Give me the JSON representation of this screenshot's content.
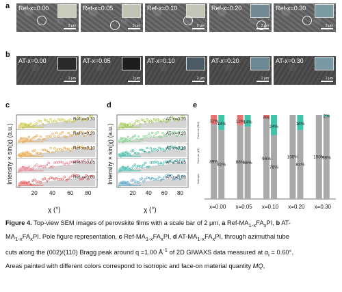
{
  "panels": {
    "a": "a",
    "b": "b",
    "c": "c",
    "d": "d",
    "e": "e"
  },
  "row_a": [
    {
      "label": "Ref-x=0.00",
      "scale": "2 μm",
      "inset_color": "#c9cbbb"
    },
    {
      "label": "Ref-x=0.05",
      "scale": "2 μm",
      "inset_color": "#c1c3b3"
    },
    {
      "label": "Ref-x=0.10",
      "scale": "2 μm",
      "inset_color": "#c4c6b8"
    },
    {
      "label": "Ref-x=0.20",
      "scale": "2 μm",
      "inset_color": "#6f8a92"
    },
    {
      "label": "Ref-x=0.30",
      "scale": "2 μm",
      "inset_color": "#7b9aa2"
    }
  ],
  "row_b": [
    {
      "label": "AT-x=0.00",
      "scale": "2 μm",
      "inset_color": "#2b2b2b"
    },
    {
      "label": "AT-x=0.05",
      "scale": "2 μm",
      "inset_color": "#1d1d1d"
    },
    {
      "label": "AT-x=0.10",
      "scale": "2 μm",
      "inset_color": "#4a5b66"
    },
    {
      "label": "AT-x=0.20",
      "scale": "2 μm",
      "inset_color": "#6c8894"
    },
    {
      "label": "AT-x=0.30",
      "scale": "2 μm",
      "inset_color": "#7a98a4"
    }
  ],
  "chart_data": [
    {
      "type": "scatter",
      "panel": "c",
      "ylabel": "Intensity × sin(χ) (a.u.)",
      "xlabel": "χ (°)",
      "xticks": [
        "20",
        "40",
        "60",
        "80"
      ],
      "series": [
        {
          "name": "Ref-x=0.30",
          "color": "#c8c43a"
        },
        {
          "name": "Ref-x=0.20",
          "color": "#e8a54a"
        },
        {
          "name": "Ref-x=0.10",
          "color": "#e9a23c"
        },
        {
          "name": "Ref-x=0.05",
          "color": "#e57d8a"
        },
        {
          "name": "Ref-x=0.00",
          "color": "#e8605f"
        }
      ]
    },
    {
      "type": "scatter",
      "panel": "d",
      "ylabel": "Intensity × sin(χ) (a.u.)",
      "xlabel": "χ (°)",
      "xticks": [
        "20",
        "40",
        "60",
        "80"
      ],
      "series": [
        {
          "name": "AT-x=0.30",
          "color": "#9ac64a"
        },
        {
          "name": "AT-x=0.20",
          "color": "#7fcf8a"
        },
        {
          "name": "AT-x=0.10",
          "color": "#39b9a6"
        },
        {
          "name": "AT-x=0.05",
          "color": "#3ab8b0"
        },
        {
          "name": "AT-x=0.00",
          "color": "#5aa7c8"
        }
      ]
    },
    {
      "type": "bar",
      "panel": "e",
      "categories": [
        "x=0.00",
        "x=0.05",
        "x=0.10",
        "x=0.20",
        "x=0.30"
      ],
      "legend_labels": [
        "Face-on (Ref)",
        "Face-on (AT)",
        "Isotropic"
      ],
      "colors": {
        "isotropic": "#a9a9a9",
        "faceon_ref": "#e8706f",
        "faceon_at": "#3fc3a9"
      },
      "bars": [
        {
          "cat": "x=0.00",
          "ref_iso": 89,
          "ref_face": 11,
          "at_iso": 82,
          "at_face": 18,
          "labels": {
            "ref_iso": "89%",
            "ref_face": "11%",
            "at_iso": "82%",
            "at_face": "18%"
          }
        },
        {
          "cat": "x=0.05",
          "ref_iso": 88,
          "ref_face": 12,
          "at_iso": 86,
          "at_face": 14,
          "labels": {
            "ref_iso": "88%",
            "ref_face": "12%",
            "at_iso": "86%",
            "at_face": "14%"
          }
        },
        {
          "cat": "x=0.10",
          "ref_iso": 96,
          "ref_face": 4,
          "at_iso": 76,
          "at_face": 24,
          "labels": {
            "ref_iso": "96%",
            "ref_face": "4%",
            "at_iso": "76%",
            "at_face": "24%"
          }
        },
        {
          "cat": "x=0.20",
          "ref_iso": 100,
          "ref_face": 0,
          "at_iso": 82,
          "at_face": 18,
          "labels": {
            "ref_iso": "100%",
            "ref_face": "",
            "at_iso": "82%",
            "at_face": "18%"
          }
        },
        {
          "cat": "x=0.30",
          "ref_iso": 100,
          "ref_face": 0,
          "at_iso": 98,
          "at_face": 2,
          "labels": {
            "ref_iso": "100%",
            "ref_face": "",
            "at_iso": "98%",
            "at_face": "2%"
          }
        }
      ]
    }
  ],
  "caption": {
    "lines": [
      "<b>Figure 4.</b> Top-view SEM images of perovskite films with a scale bar of 2 μm, <b>a</b> Ref-MA<sub>1-x</sub>FA<sub>x</sub>PI, <b>b</b> AT-",
      "MA<sub>1-x</sub>FA<sub>x</sub>PI. Pole figure representation, <b>c</b> Ref-MA<sub>1-x</sub>FA<sub>x</sub>PI, <b>d</b> AT-MA<sub>1-x</sub>FA<sub>x</sub>PI, through azimuthal tube",
      "cuts along the (002)/(110) Bragg peak around q =1.00 Å<sup>-1</sup> of 2D GIWAXS data measured at α<sub>i</sub> = 0.60°.",
      "Areas painted with different colors correspond to isotropic and face-on material quantity <i>MQ</i>,"
    ]
  }
}
